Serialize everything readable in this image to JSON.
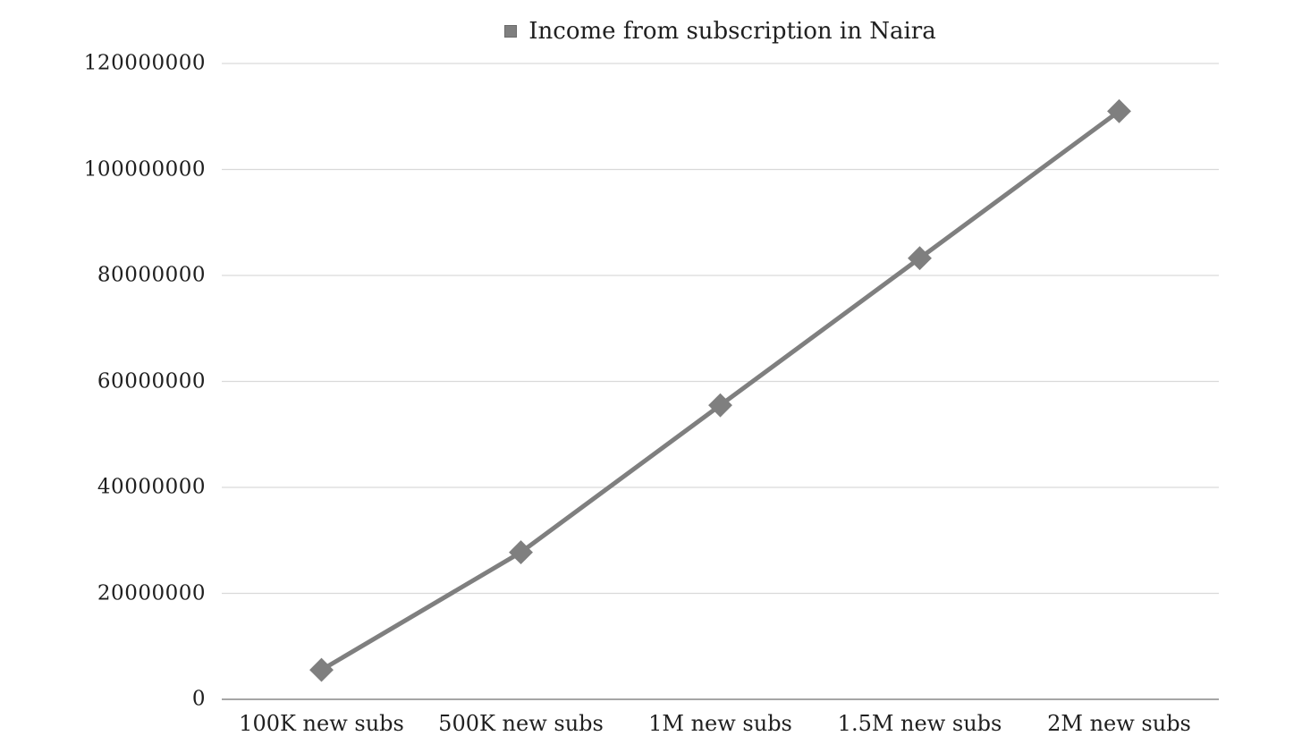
{
  "page": {
    "background": "#ffffff"
  },
  "legend": {
    "label": "Income from subscription in Naira",
    "marker_color": "#7f7f7f"
  },
  "colors": {
    "series": "#7f7f7f",
    "gridline": "#d9d9d9",
    "axis_line": "#a6a6a6",
    "text": "#1f1f1f"
  },
  "chart_data": {
    "type": "line",
    "title": "Income from subscription in Naira",
    "categories": [
      "100K new subs",
      "500K new subs",
      "1M new subs",
      "1.5M new subs",
      "2M new subs"
    ],
    "series": [
      {
        "name": "Income from subscription in Naira",
        "values": [
          5550000,
          27750000,
          55500000,
          83250000,
          111000000
        ],
        "color": "#7f7f7f",
        "marker": "diamond"
      }
    ],
    "xlabel": "",
    "ylabel": "",
    "ylim": [
      0,
      120000000
    ],
    "y_ticks": [
      0,
      20000000,
      40000000,
      60000000,
      80000000,
      100000000,
      120000000
    ],
    "grid": "horizontal",
    "legend_position": "top-center"
  }
}
